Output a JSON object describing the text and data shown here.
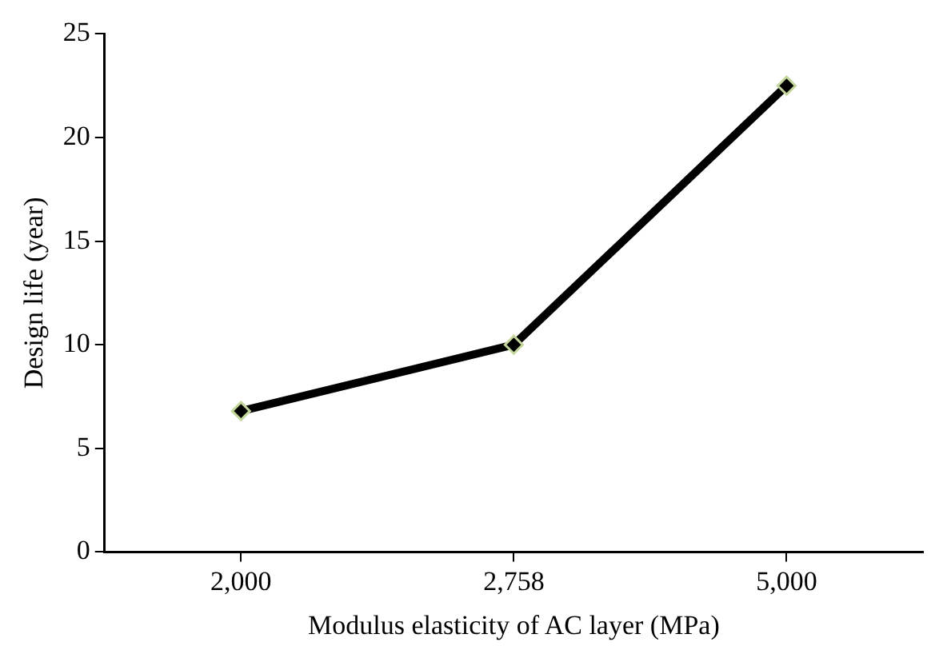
{
  "chart_data": {
    "type": "line",
    "xlabel": "Modulus elasticity of AC layer (MPa)",
    "ylabel": "Design life (year)",
    "categories": [
      "2,000",
      "2,758",
      "5,000"
    ],
    "series": [
      {
        "color": "#000000",
        "values": [
          6.8,
          10,
          22.5
        ]
      }
    ],
    "ylim": [
      0,
      25
    ],
    "yticks": [
      0,
      5,
      10,
      15,
      20,
      25
    ],
    "grid": false,
    "legend": false,
    "marker": "diamond",
    "line_style": "solid"
  }
}
